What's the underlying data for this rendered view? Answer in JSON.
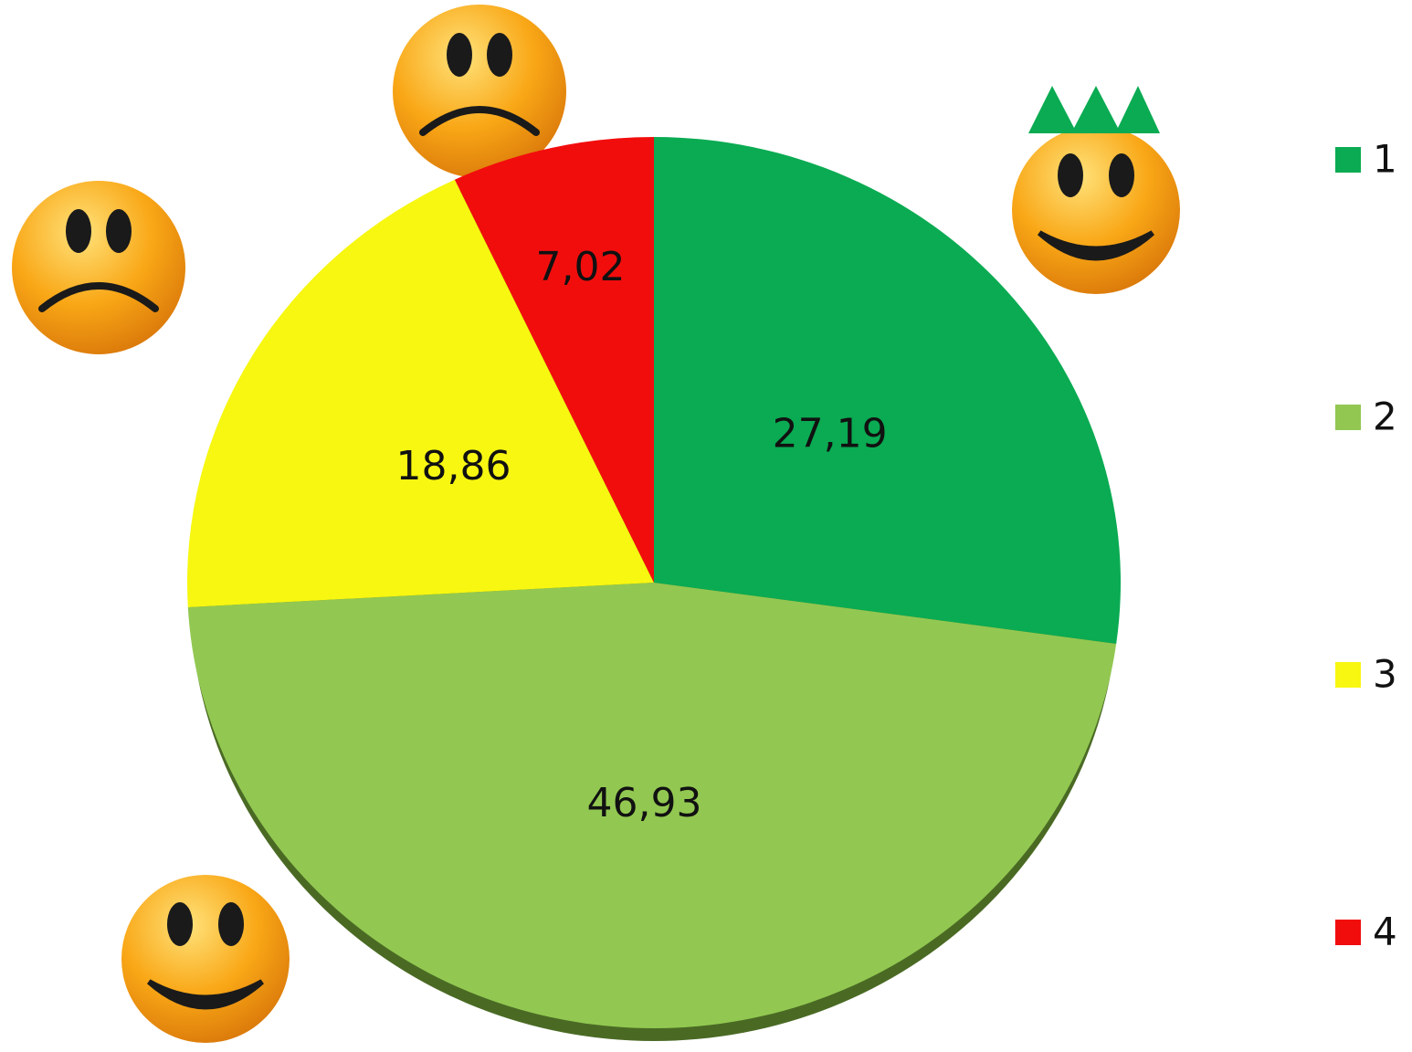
{
  "chart_data": {
    "type": "pie",
    "categories": [
      "1",
      "2",
      "3",
      "4"
    ],
    "values": [
      27.19,
      46.93,
      18.86,
      7.02
    ],
    "value_labels": [
      "27,19",
      "46,93",
      "18,86",
      "7,02"
    ],
    "colors": [
      "#0aab52",
      "#92c851",
      "#f7f711",
      "#f20d0d"
    ],
    "legend": "right"
  }
}
